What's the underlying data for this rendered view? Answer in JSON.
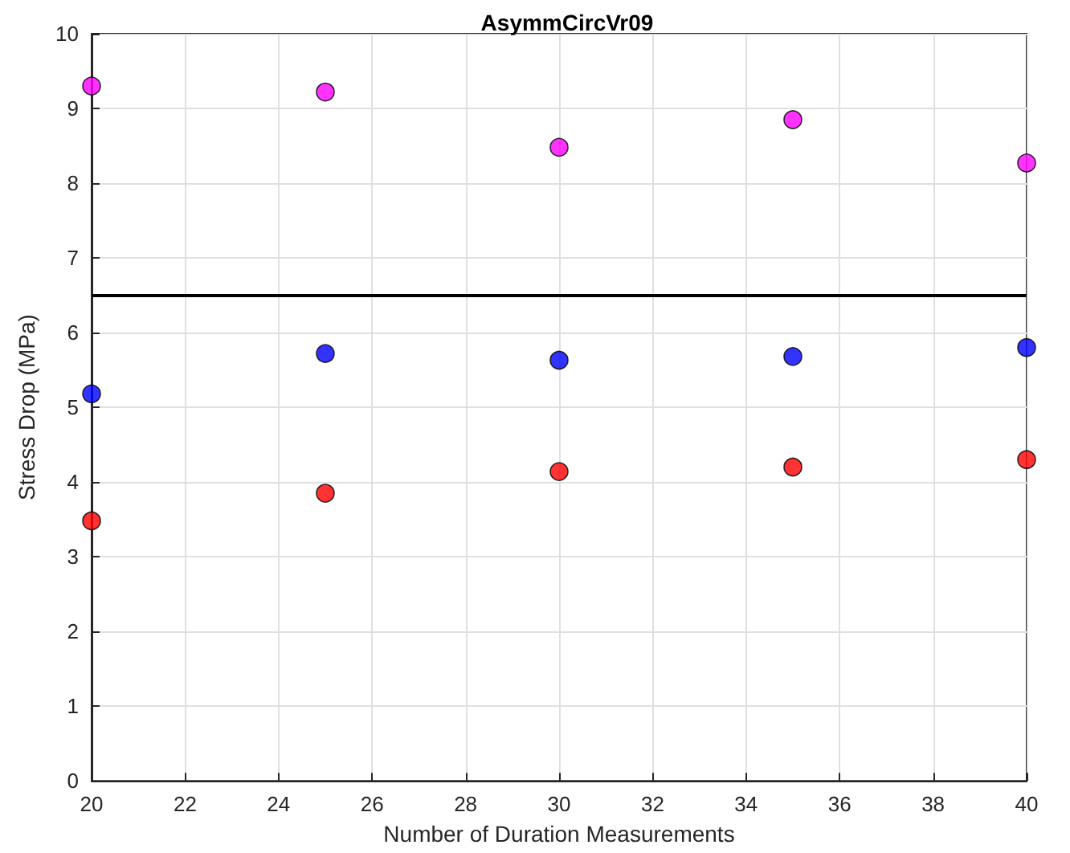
{
  "chart_data": {
    "type": "scatter",
    "title": "AsymmCircVr09",
    "xlabel": "Number of Duration Measurements",
    "ylabel": "Stress Drop (MPa)",
    "x": [
      20,
      25,
      30,
      35,
      40
    ],
    "series": [
      {
        "color": "#ff00ff",
        "values": [
          9.3,
          9.22,
          8.48,
          8.85,
          8.27
        ]
      },
      {
        "color": "#0000ff",
        "values": [
          5.18,
          5.72,
          5.63,
          5.68,
          5.8
        ]
      },
      {
        "color": "#ff0000",
        "values": [
          3.48,
          3.85,
          4.14,
          4.2,
          4.3
        ]
      }
    ],
    "xlim": [
      20,
      40
    ],
    "xticks": [
      20,
      22,
      24,
      26,
      28,
      30,
      32,
      34,
      36,
      38,
      40
    ],
    "ylim": [
      0,
      10
    ],
    "yticks": [
      0,
      1,
      2,
      3,
      4,
      5,
      6,
      7,
      8,
      9,
      10
    ],
    "ref_lines": [
      {
        "axis": "y",
        "value": 6.5,
        "color": "#000000"
      }
    ],
    "grid": true,
    "marker": "circle"
  }
}
